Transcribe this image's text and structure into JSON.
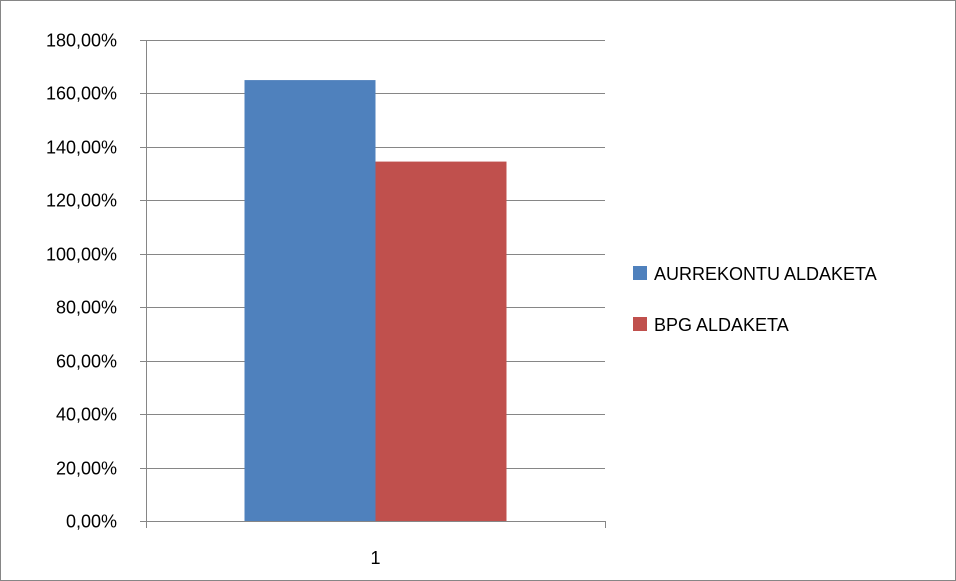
{
  "chart_data": {
    "type": "bar",
    "categories": [
      "1"
    ],
    "series": [
      {
        "name": "AURREKONTU ALDAKETA",
        "values": [
          1.65
        ],
        "color": "#4F81BD"
      },
      {
        "name": "BPG ALDAKETA",
        "values": [
          1.345
        ],
        "color": "#C0504D"
      }
    ],
    "ylim": [
      0,
      1.8
    ],
    "y_ticks": [
      0,
      0.2,
      0.4,
      0.6,
      0.8,
      1.0,
      1.2,
      1.4,
      1.6,
      1.8
    ],
    "y_tick_labels": [
      "0,00%",
      "20,00%",
      "40,00%",
      "60,00%",
      "80,00%",
      "100,00%",
      "120,00%",
      "140,00%",
      "160,00%",
      "180,00%"
    ],
    "grid": true,
    "legend_position": "right",
    "title": "",
    "xlabel": "",
    "ylabel": ""
  }
}
